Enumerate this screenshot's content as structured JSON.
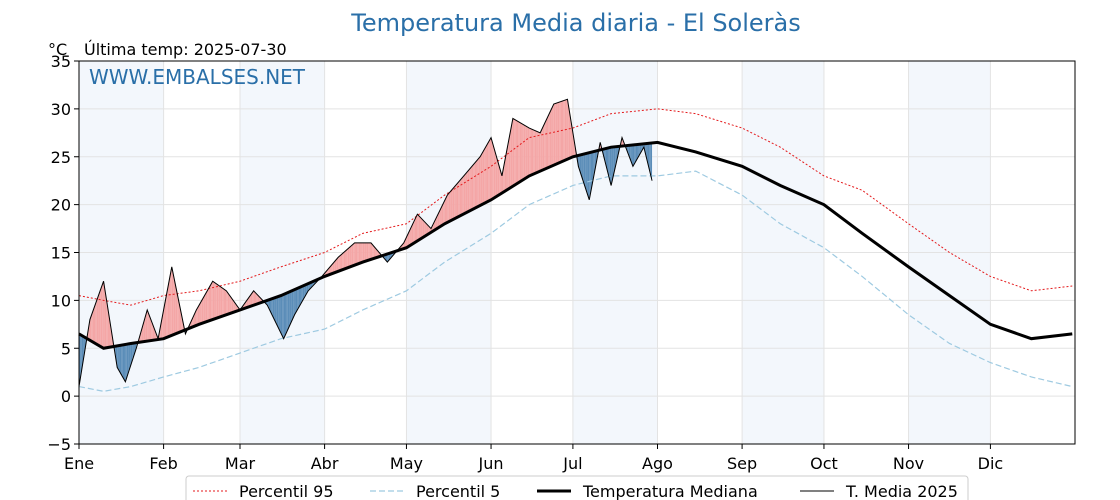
{
  "chart_data": {
    "type": "line",
    "title": "Temperatura Media diaria - El Soleràs",
    "subtitle": "Última temp: 2025-07-30",
    "ylabel": "°C",
    "watermark": "WWW.EMBALSES.NET",
    "ylim": [
      -5,
      35
    ],
    "yticks": [
      -5,
      0,
      5,
      10,
      15,
      20,
      25,
      30,
      35
    ],
    "ytick_labels": [
      "−5",
      "0",
      "5",
      "10",
      "15",
      "20",
      "25",
      "30",
      "35"
    ],
    "months": [
      "Ene",
      "Feb",
      "Mar",
      "Abr",
      "May",
      "Jun",
      "Jul",
      "Ago",
      "Sep",
      "Oct",
      "Nov",
      "Dic"
    ],
    "month_start_doy": [
      1,
      32,
      60,
      91,
      121,
      152,
      182,
      213,
      244,
      274,
      305,
      335
    ],
    "days_in_year": 365,
    "grid": true,
    "legend_placement": "bottom",
    "colors": {
      "p95": "#e41a1c",
      "p5": "#9ecae1",
      "median": "#000000",
      "current": "#000000",
      "above_fill": "#f4a6a6",
      "below_fill": "#5b8db8",
      "month_band": "#dde9f5",
      "title": "#2a6fa8"
    },
    "series": [
      {
        "name": "Percentil 95",
        "style": "dotted",
        "x": [
          1,
          10,
          20,
          32,
          45,
          60,
          75,
          91,
          105,
          121,
          135,
          152,
          166,
          182,
          196,
          213,
          227,
          244,
          258,
          274,
          288,
          305,
          320,
          335,
          350,
          365
        ],
        "values": [
          10.5,
          10,
          9.5,
          10.5,
          11,
          12,
          13.5,
          15,
          17,
          18,
          21,
          24,
          27,
          28,
          29.5,
          30,
          29.5,
          28,
          26,
          23,
          21.5,
          18,
          15,
          12.5,
          11,
          11.5
        ]
      },
      {
        "name": "Percentil 5",
        "style": "dashed",
        "x": [
          1,
          10,
          20,
          32,
          45,
          60,
          75,
          91,
          105,
          121,
          135,
          152,
          166,
          182,
          196,
          213,
          227,
          244,
          258,
          274,
          288,
          305,
          320,
          335,
          350,
          365
        ],
        "values": [
          1,
          0.5,
          1,
          2,
          3,
          4.5,
          6,
          7,
          9,
          11,
          14,
          17,
          20,
          22,
          23,
          23,
          23.5,
          21,
          18,
          15.5,
          12.5,
          8.5,
          5.5,
          3.5,
          2,
          1
        ]
      },
      {
        "name": "Temperatura Mediana",
        "style": "solid-thick",
        "x": [
          1,
          10,
          20,
          32,
          45,
          60,
          75,
          91,
          105,
          121,
          135,
          152,
          166,
          182,
          196,
          213,
          227,
          244,
          258,
          274,
          288,
          305,
          320,
          335,
          350,
          365
        ],
        "values": [
          6.5,
          5,
          5.5,
          6,
          7.5,
          9,
          10.5,
          12.5,
          14,
          15.5,
          18,
          20.5,
          23,
          25,
          26,
          26.5,
          25.5,
          24,
          22,
          20,
          17,
          13.5,
          10.5,
          7.5,
          6,
          6.5
        ]
      },
      {
        "name": "T. Media 2025",
        "style": "solid-thin",
        "x": [
          1,
          5,
          10,
          15,
          18,
          22,
          26,
          30,
          35,
          40,
          44,
          50,
          55,
          60,
          65,
          70,
          76,
          80,
          85,
          90,
          96,
          102,
          108,
          114,
          120,
          125,
          130,
          136,
          142,
          148,
          152,
          156,
          160,
          166,
          170,
          175,
          180,
          184,
          188,
          192,
          196,
          200,
          204,
          208,
          211
        ],
        "values": [
          1,
          8,
          12,
          3,
          1.5,
          5,
          9,
          6,
          13.5,
          6.5,
          9,
          12,
          11,
          9,
          11,
          9.5,
          6,
          8.5,
          11,
          12.5,
          14.5,
          16,
          16,
          14,
          16,
          19,
          17.5,
          21,
          23,
          25,
          27,
          23,
          29,
          28,
          27.5,
          30.5,
          31,
          24,
          20.5,
          26.5,
          22,
          27,
          24,
          26,
          22.5
        ]
      }
    ]
  }
}
